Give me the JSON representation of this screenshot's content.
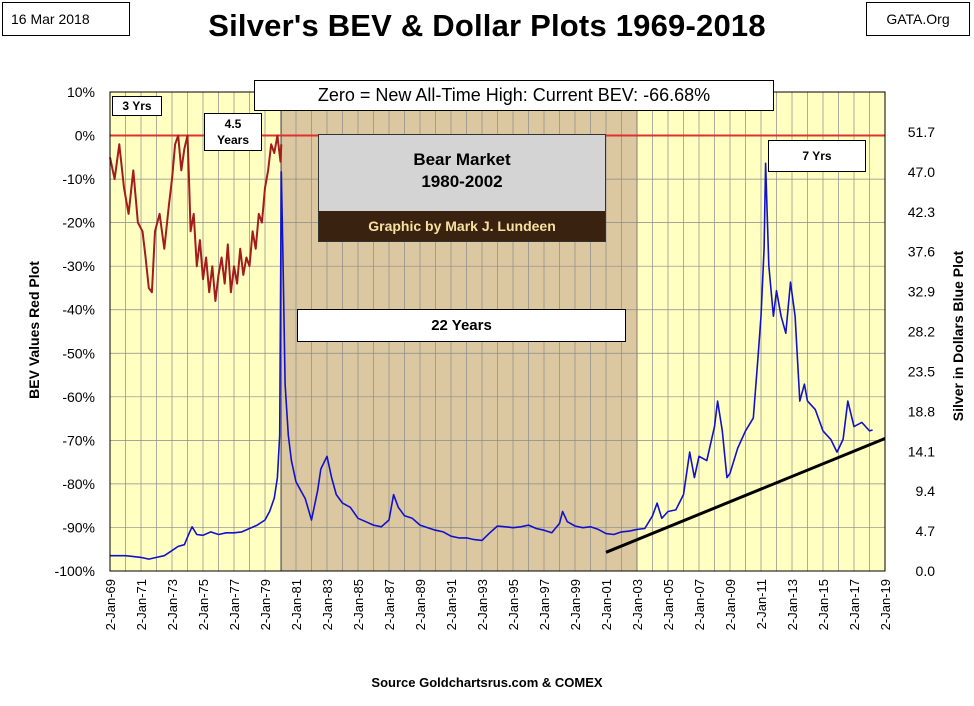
{
  "header": {
    "date": "16 Mar 2018",
    "source": "GATA.Org",
    "title": "Silver's BEV & Dollar Plots 1969-2018"
  },
  "annotations": {
    "zero_note": "Zero = New All-Time High: Current BEV: -66.68%",
    "yrs3": "3 Yrs",
    "yrs4_5_line1": "4.5",
    "yrs4_5_line2": "Years",
    "yrs7": "7 Yrs",
    "bear_line1": "Bear Market",
    "bear_line2": "1980-2002",
    "credit": "Graphic by Mark J. Lundeen",
    "years22": "22 Years"
  },
  "footer": "Source Goldchartsrus.com & COMEX",
  "colors": {
    "plot_bg": "#ffffc2",
    "bear_shade": "#dcc8a0",
    "bev_line": "#a31c1c",
    "price_line": "#1111cc",
    "zero_line": "#e03030",
    "trend_line": "#000000"
  },
  "chart_data": {
    "type": "line",
    "title": "Silver's BEV & Dollar Plots 1969-2018",
    "xlabel": "",
    "ylabel_left": "BEV Values  Red Plot",
    "ylabel_right": "Silver in Dollars  Blue Plot",
    "left_ylim": [
      -100,
      10
    ],
    "right_ylim": [
      0,
      56.4
    ],
    "x_range": [
      1969,
      2019
    ],
    "grid": true,
    "left_ticks": [
      "10%",
      "0%",
      "-10%",
      "-20%",
      "-30%",
      "-40%",
      "-50%",
      "-60%",
      "-70%",
      "-80%",
      "-90%",
      "-100%"
    ],
    "right_ticks": [
      "51.7",
      "47.0",
      "42.3",
      "37.6",
      "32.9",
      "28.2",
      "23.5",
      "18.8",
      "14.1",
      "9.4",
      "4.7",
      "0.0"
    ],
    "x_ticks": [
      "2-Jan-69",
      "2-Jan-71",
      "2-Jan-73",
      "2-Jan-75",
      "2-Jan-77",
      "2-Jan-79",
      "2-Jan-81",
      "2-Jan-83",
      "2-Jan-85",
      "2-Jan-87",
      "2-Jan-89",
      "2-Jan-91",
      "2-Jan-93",
      "2-Jan-95",
      "2-Jan-97",
      "2-Jan-99",
      "2-Jan-01",
      "2-Jan-03",
      "2-Jan-05",
      "2-Jan-07",
      "2-Jan-09",
      "2-Jan-11",
      "2-Jan-13",
      "2-Jan-15",
      "2-Jan-17",
      "2-Jan-19"
    ],
    "bear_market_span": [
      1980.05,
      2003.0
    ],
    "trend_line": {
      "x": [
        2001.0,
        2019.0
      ],
      "y": [
        2.2,
        15.6
      ]
    },
    "series": [
      {
        "name": "BEV Values",
        "axis": "left",
        "x": [
          1969.0,
          1969.3,
          1969.6,
          1969.9,
          1970.2,
          1970.5,
          1970.8,
          1971.1,
          1971.3,
          1971.5,
          1971.7,
          1971.9,
          1972.2,
          1972.5,
          1972.8,
          1973.0,
          1973.2,
          1973.4,
          1973.6,
          1973.8,
          1974.0,
          1974.1,
          1974.2,
          1974.4,
          1974.6,
          1974.8,
          1975.0,
          1975.2,
          1975.4,
          1975.6,
          1975.8,
          1976.0,
          1976.2,
          1976.4,
          1976.6,
          1976.8,
          1977.0,
          1977.2,
          1977.4,
          1977.6,
          1977.8,
          1978.0,
          1978.2,
          1978.4,
          1978.6,
          1978.8,
          1979.0,
          1979.2,
          1979.4,
          1979.6,
          1979.8,
          1980.0,
          1980.05
        ],
        "y": [
          -5,
          -10,
          -2,
          -12,
          -18,
          -8,
          -20,
          -22,
          -28,
          -35,
          -36,
          -22,
          -18,
          -26,
          -16,
          -10,
          -2,
          0,
          -8,
          -3,
          0,
          -10,
          -22,
          -18,
          -30,
          -24,
          -33,
          -28,
          -36,
          -30,
          -38,
          -32,
          -28,
          -34,
          -25,
          -36,
          -30,
          -34,
          -26,
          -32,
          -28,
          -30,
          -22,
          -26,
          -18,
          -20,
          -12,
          -8,
          -2,
          -4,
          0,
          -6,
          -2
        ]
      },
      {
        "name": "Silver Price",
        "axis": "right",
        "x": [
          1969.0,
          1970.0,
          1971.0,
          1971.5,
          1972.0,
          1972.5,
          1973.0,
          1973.4,
          1973.8,
          1974.1,
          1974.3,
          1974.6,
          1975.0,
          1975.5,
          1976.0,
          1976.5,
          1977.0,
          1977.5,
          1978.0,
          1978.5,
          1979.0,
          1979.3,
          1979.6,
          1979.8,
          1979.95,
          1980.05,
          1980.15,
          1980.3,
          1980.5,
          1980.7,
          1981.0,
          1981.3,
          1981.6,
          1982.0,
          1982.4,
          1982.6,
          1983.0,
          1983.3,
          1983.6,
          1984.0,
          1984.5,
          1985.0,
          1985.5,
          1986.0,
          1986.5,
          1987.0,
          1987.3,
          1987.6,
          1988.0,
          1988.5,
          1989.0,
          1989.5,
          1990.0,
          1990.5,
          1991.0,
          1991.5,
          1992.0,
          1992.5,
          1993.0,
          1993.5,
          1994.0,
          1994.5,
          1995.0,
          1995.5,
          1996.0,
          1996.5,
          1997.0,
          1997.5,
          1998.0,
          1998.2,
          1998.5,
          1999.0,
          1999.5,
          2000.0,
          2000.5,
          2001.0,
          2001.5,
          2002.0,
          2002.5,
          2003.0,
          2003.5,
          2004.0,
          2004.3,
          2004.6,
          2005.0,
          2005.5,
          2006.0,
          2006.4,
          2006.7,
          2007.0,
          2007.5,
          2008.0,
          2008.2,
          2008.5,
          2008.8,
          2009.0,
          2009.5,
          2010.0,
          2010.5,
          2010.8,
          2011.0,
          2011.2,
          2011.3,
          2011.5,
          2011.8,
          2012.0,
          2012.3,
          2012.6,
          2012.9,
          2013.2,
          2013.5,
          2013.8,
          2014.0,
          2014.5,
          2015.0,
          2015.5,
          2015.9,
          2016.3,
          2016.6,
          2017.0,
          2017.5,
          2018.0,
          2018.2
        ],
        "y": [
          1.8,
          1.8,
          1.6,
          1.4,
          1.6,
          1.8,
          2.4,
          2.9,
          3.1,
          4.4,
          5.2,
          4.3,
          4.2,
          4.6,
          4.3,
          4.5,
          4.5,
          4.6,
          5.0,
          5.4,
          6.0,
          7.0,
          8.6,
          11.0,
          16.0,
          47.0,
          38.0,
          22.0,
          16.0,
          13.0,
          10.5,
          9.5,
          8.5,
          6.0,
          9.5,
          12.0,
          13.5,
          11.0,
          9.0,
          8.0,
          7.5,
          6.2,
          5.8,
          5.4,
          5.2,
          6.0,
          9.0,
          7.5,
          6.5,
          6.2,
          5.4,
          5.1,
          4.8,
          4.6,
          4.1,
          3.9,
          3.9,
          3.7,
          3.6,
          4.5,
          5.3,
          5.2,
          5.1,
          5.2,
          5.4,
          5.0,
          4.8,
          4.5,
          5.6,
          7.0,
          5.8,
          5.3,
          5.1,
          5.2,
          4.9,
          4.4,
          4.3,
          4.6,
          4.7,
          4.9,
          5.0,
          6.5,
          8.0,
          6.2,
          7.0,
          7.2,
          9.0,
          14.0,
          11.0,
          13.5,
          13.0,
          17.0,
          20.0,
          16.5,
          11.0,
          11.5,
          14.5,
          16.5,
          18.0,
          25.0,
          30.0,
          38.0,
          48.0,
          36.0,
          30.0,
          33.0,
          30.0,
          28.0,
          34.0,
          30.0,
          20.0,
          22.0,
          20.0,
          19.0,
          16.5,
          15.5,
          14.0,
          15.5,
          20.0,
          17.0,
          17.5,
          16.5,
          16.6
        ]
      }
    ]
  }
}
